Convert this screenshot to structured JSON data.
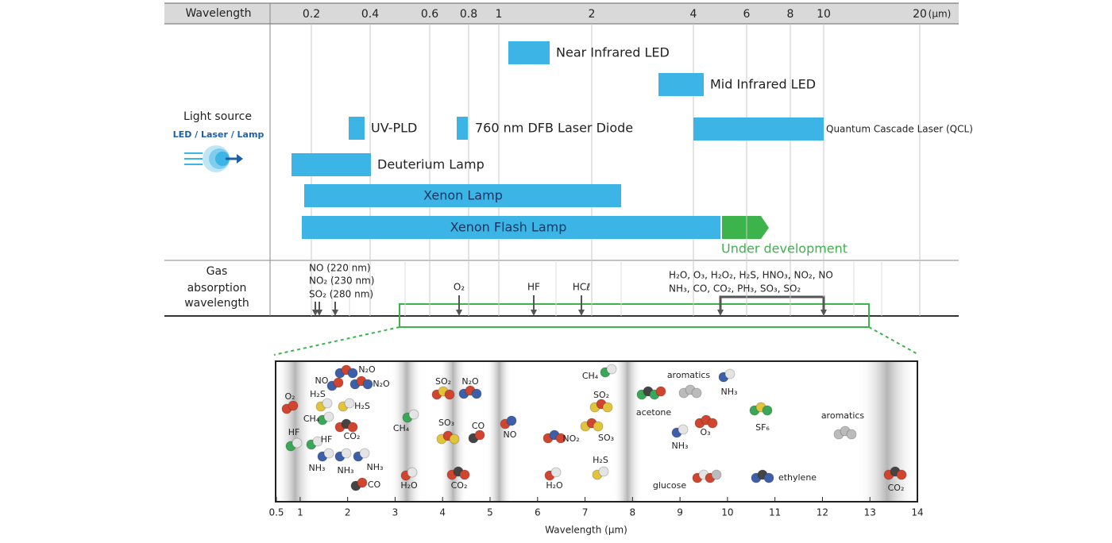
{
  "header": {
    "label": "Wavelength",
    "ticks": [
      "0.2",
      "0.4",
      "0.6",
      "0.8",
      "1",
      "2",
      "4",
      "6",
      "8",
      "10",
      "20"
    ],
    "unit": "(μm)"
  },
  "light_source": {
    "title": "Light source",
    "subtitle": "LED / Laser / Lamp",
    "sources": [
      "Near Infrared LED",
      "Mid Infrared LED",
      "UV-PLD",
      "760 nm DFB Laser Diode",
      "Quantum Cascade Laser (QCL)",
      "Deuterium Lamp",
      "Xenon Lamp",
      "Xenon Flash Lamp"
    ],
    "under_development": "Under development"
  },
  "gas": {
    "title": [
      "Gas",
      "absorption",
      "wavelength"
    ],
    "uv": [
      "NO (220 nm)",
      "NO₂ (230 nm)",
      "SO₂ (280 nm)"
    ],
    "markers": [
      "O₂",
      "HF",
      "HCℓ"
    ],
    "ir": [
      "H₂O, O₃, H₂O₂, H₂S, HNO₃, NO₂, NO",
      "NH₃, CO, CO₂, PH₃, SO₃, SO₂"
    ]
  },
  "detail": {
    "xlim": [
      0.5,
      14
    ],
    "xticks": [
      0.5,
      1,
      2,
      3,
      4,
      5,
      6,
      7,
      8,
      9,
      10,
      11,
      12,
      13,
      14
    ],
    "xlabel": "Wavelength (μm)",
    "molecules": [
      "O₂",
      "NO",
      "N₂O",
      "N₂O",
      "H₂S",
      "H₂S",
      "CH₄",
      "CO₂",
      "HF",
      "HF",
      "NH₃",
      "NH₃",
      "NH₃",
      "CO",
      "H₂O",
      "CH₄",
      "SO₂",
      "N₂O",
      "SO₃",
      "CO",
      "CO₂",
      "NO",
      "NO₂",
      "H₂O",
      "SO₃",
      "SO₂",
      "CH₄",
      "H₂S",
      "acetone",
      "aromatics",
      "NH₃",
      "NH₃",
      "O₃",
      "SF₆",
      "glucose",
      "ethylene",
      "aromatics",
      "CO₂"
    ]
  }
}
